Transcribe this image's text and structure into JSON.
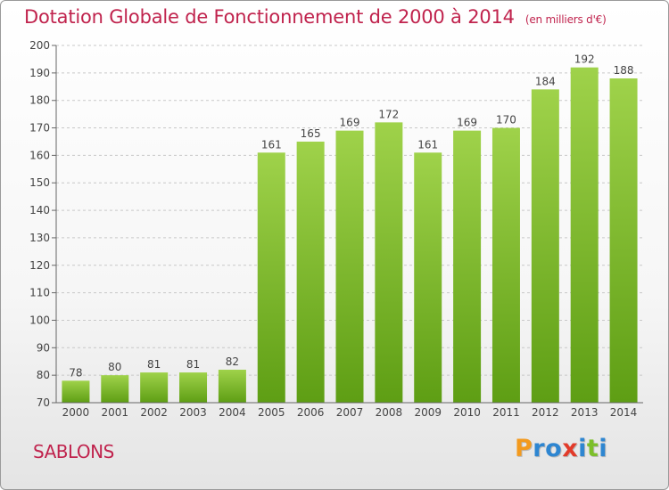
{
  "chart_data": {
    "type": "bar",
    "title": "Dotation Globale de Fonctionnement de 2000 à 2014",
    "subtitle": "(en milliers d'€)",
    "categories": [
      "2000",
      "2001",
      "2002",
      "2003",
      "2004",
      "2005",
      "2006",
      "2007",
      "2008",
      "2009",
      "2010",
      "2011",
      "2012",
      "2013",
      "2014"
    ],
    "values": [
      78,
      80,
      81,
      81,
      82,
      161,
      165,
      169,
      172,
      161,
      169,
      170,
      184,
      192,
      188
    ],
    "ylim": [
      70,
      200
    ],
    "yticks": [
      70,
      80,
      90,
      100,
      110,
      120,
      130,
      140,
      150,
      160,
      170,
      180,
      190,
      200
    ],
    "grid": "horizontal dashed",
    "bar_color_top": "#9fd24a",
    "bar_color_bottom": "#5e9e14"
  },
  "footer": {
    "commune": "SABLONS",
    "brand_letters": [
      {
        "ch": "P",
        "color": "#f39a1e"
      },
      {
        "ch": "r",
        "color": "#2e86d1"
      },
      {
        "ch": "o",
        "color": "#2e86d1"
      },
      {
        "ch": "x",
        "color": "#e23b2a"
      },
      {
        "ch": "i",
        "color": "#2e86d1"
      },
      {
        "ch": "t",
        "color": "#7cbf2a"
      },
      {
        "ch": "i",
        "color": "#2e86d1"
      }
    ]
  }
}
